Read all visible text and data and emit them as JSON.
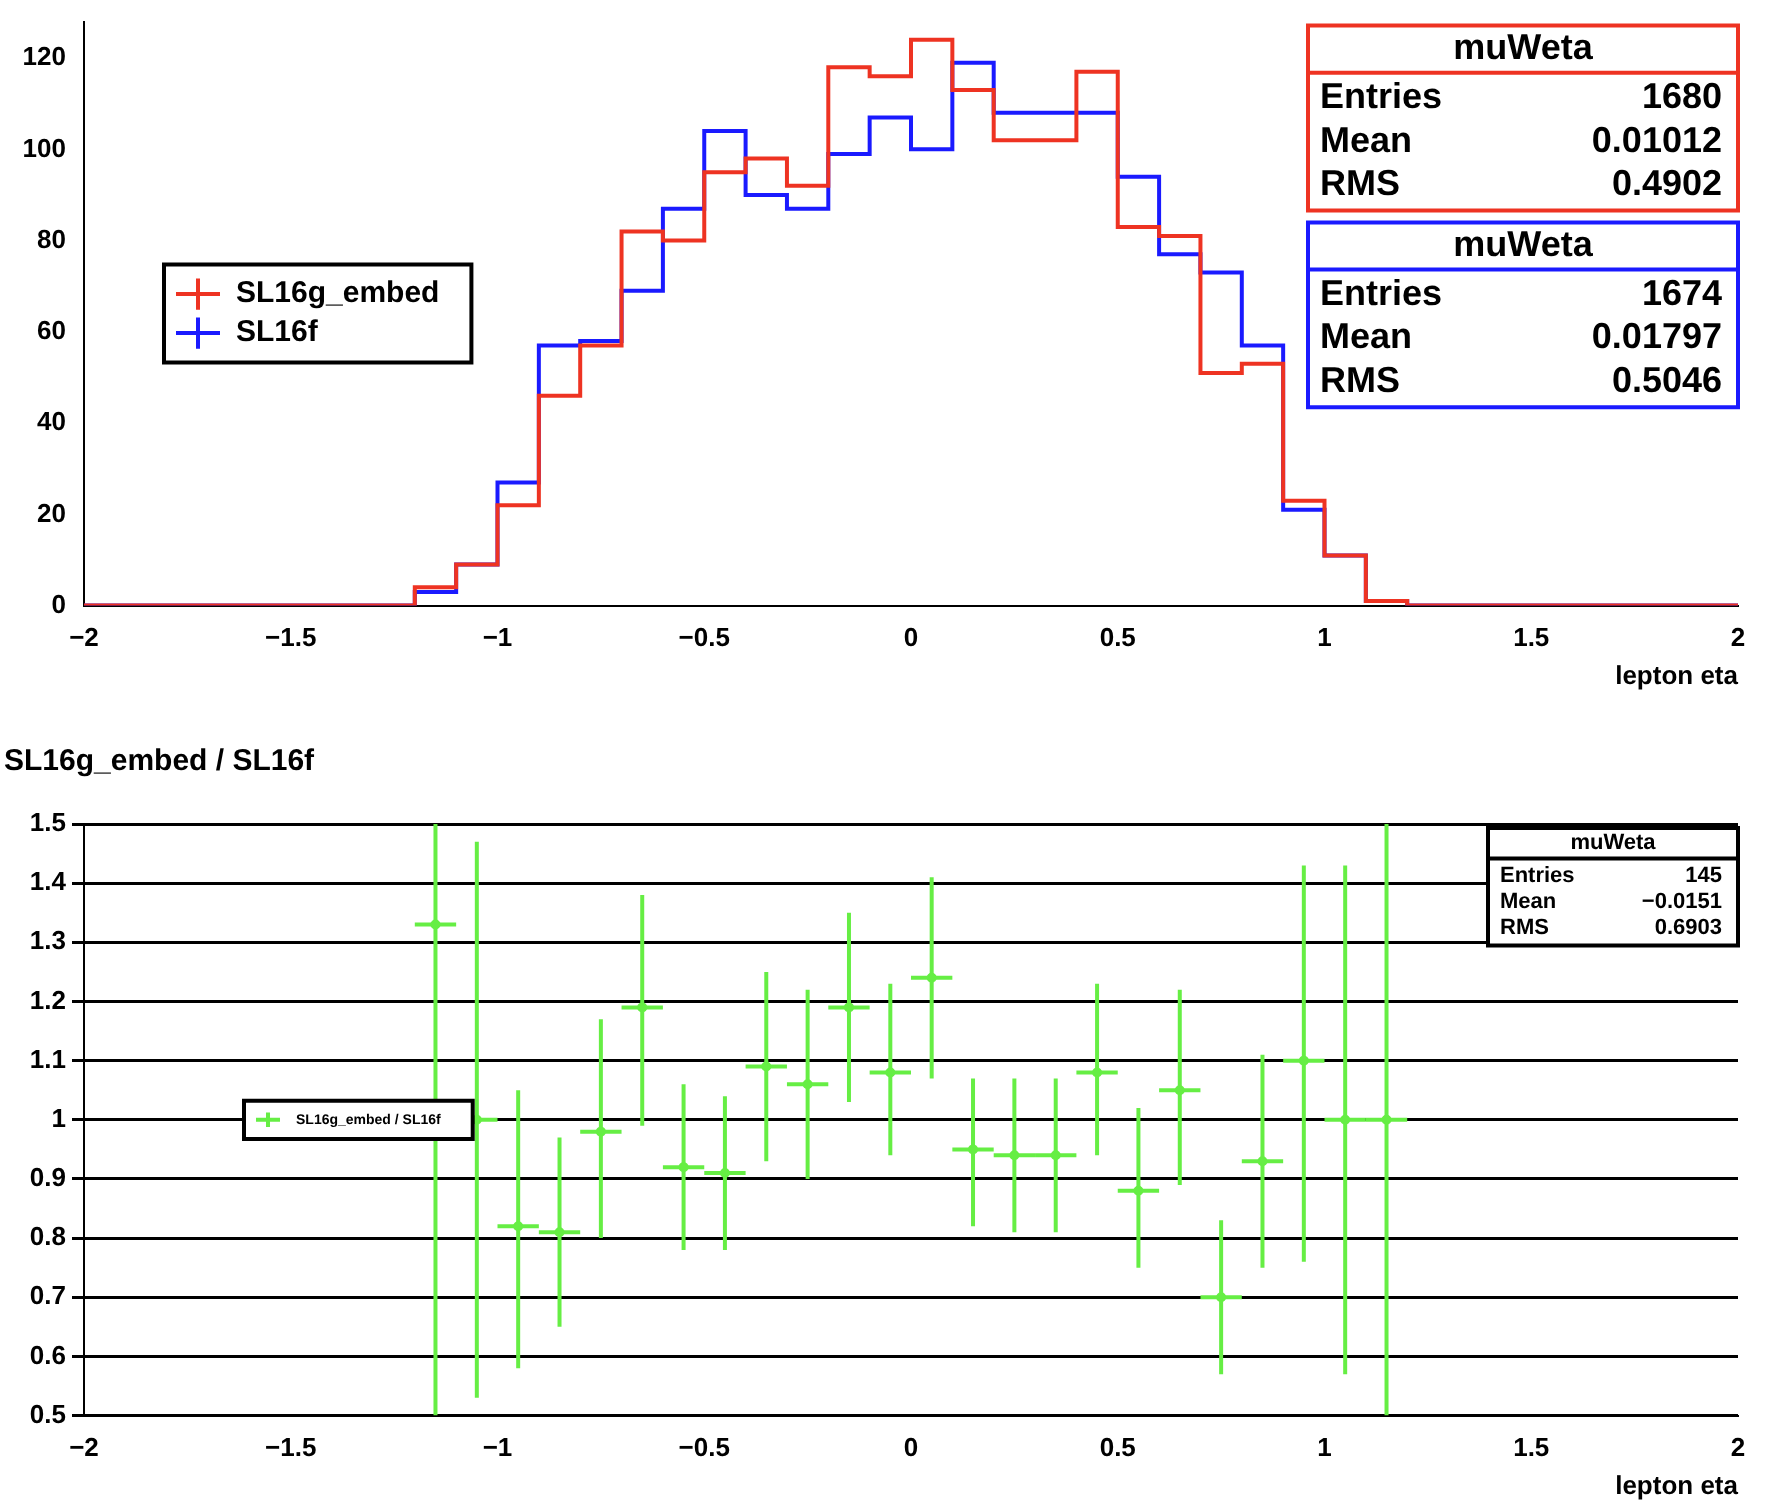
{
  "chart_data": [
    {
      "type": "histogram",
      "xlabel": "lepton eta",
      "bins": [
        -2,
        -1.9,
        -1.8,
        -1.7,
        -1.6,
        -1.5,
        -1.4,
        -1.3,
        -1.2,
        -1.1,
        -1,
        -0.9,
        -0.8,
        -0.7,
        -0.6,
        -0.5,
        -0.4,
        -0.3,
        -0.2,
        -0.1,
        0,
        0.1,
        0.2,
        0.3,
        0.4,
        0.5,
        0.6,
        0.7,
        0.8,
        0.9,
        1,
        1.1,
        1.2,
        1.3,
        1.4,
        1.5,
        1.6,
        1.7,
        1.8,
        1.9,
        2
      ],
      "series": [
        {
          "name": "SL16g_embed",
          "color": "#ee3322",
          "values": [
            0,
            0,
            0,
            0,
            0,
            0,
            0,
            0,
            4,
            9,
            22,
            46,
            57,
            82,
            80,
            95,
            98,
            92,
            118,
            116,
            124,
            113,
            102,
            102,
            117,
            83,
            81,
            51,
            53,
            23,
            11,
            1,
            0,
            0,
            0,
            0,
            0,
            0,
            0,
            0
          ]
        },
        {
          "name": "SL16f",
          "color": "#1a1aff",
          "values": [
            0,
            0,
            0,
            0,
            0,
            0,
            0,
            0,
            3,
            9,
            27,
            57,
            58,
            69,
            87,
            104,
            90,
            87,
            99,
            107,
            100,
            119,
            108,
            108,
            108,
            94,
            77,
            73,
            57,
            21,
            11,
            1,
            0,
            0,
            0,
            0,
            0,
            0,
            0,
            0
          ]
        }
      ],
      "xlim": [
        -2,
        2
      ],
      "xticks": [
        {
          "value": -2,
          "label": "−2"
        },
        {
          "value": -1.5,
          "label": "−1.5"
        },
        {
          "value": -1,
          "label": "−1"
        },
        {
          "value": -0.5,
          "label": "−0.5"
        },
        0,
        0.5,
        1,
        1.5,
        2
      ],
      "ylim": [
        0,
        128
      ],
      "yticks": [
        0,
        20,
        40,
        60,
        80,
        100,
        120
      ],
      "legend": "center left",
      "annotations": [
        "muWeta",
        "Entries",
        "1680",
        "Mean",
        "0.01012",
        "RMS",
        "0.4902",
        "muWeta",
        "Entries",
        "1674",
        "Mean",
        "0.01797",
        "RMS",
        "0.5046"
      ]
    },
    {
      "type": "scatter",
      "title": "SL16g_embed / SL16f",
      "xlabel": "lepton eta",
      "x": [
        -1.15,
        -1.05,
        -0.95,
        -0.85,
        -0.75,
        -0.65,
        -0.55,
        -0.45,
        -0.35,
        -0.25,
        -0.15,
        -0.05,
        0.05,
        0.15,
        0.25,
        0.35,
        0.45,
        0.55,
        0.65,
        0.75,
        0.85,
        0.95,
        1.05,
        1.15
      ],
      "series": [
        {
          "name": "SL16g_embed / SL16f",
          "color": "#66ee44",
          "values": [
            1.33,
            1.0,
            0.82,
            0.81,
            0.98,
            1.19,
            0.92,
            0.91,
            1.09,
            1.06,
            1.19,
            1.08,
            1.24,
            0.95,
            0.94,
            0.94,
            1.08,
            0.88,
            1.05,
            0.7,
            0.93,
            1.1,
            1.0,
            1.0
          ],
          "errors": [
            [
              0.5,
              1.5
            ],
            [
              0.53,
              1.47
            ],
            [
              0.58,
              1.05
            ],
            [
              0.65,
              0.97
            ],
            [
              0.8,
              1.17
            ],
            [
              0.99,
              1.38
            ],
            [
              0.78,
              1.06
            ],
            [
              0.78,
              1.04
            ],
            [
              0.93,
              1.25
            ],
            [
              0.9,
              1.22
            ],
            [
              1.03,
              1.35
            ],
            [
              0.94,
              1.23
            ],
            [
              1.07,
              1.41
            ],
            [
              0.82,
              1.07
            ],
            [
              0.81,
              1.07
            ],
            [
              0.81,
              1.07
            ],
            [
              0.94,
              1.23
            ],
            [
              0.75,
              1.02
            ],
            [
              0.89,
              1.22
            ],
            [
              0.57,
              0.83
            ],
            [
              0.75,
              1.11
            ],
            [
              0.76,
              1.43
            ],
            [
              0.57,
              1.43
            ],
            [
              0.5,
              1.5
            ]
          ],
          "xerrors": [
            0.05,
            0.05,
            0.05,
            0.05,
            0.05,
            0.05,
            0.05,
            0.05,
            0.05,
            0.05,
            0.05,
            0.05,
            0.05,
            0.05,
            0.05,
            0.05,
            0.05,
            0.05,
            0.05,
            0.05,
            0.05,
            0.05,
            0.05,
            0.05
          ]
        }
      ],
      "xlim": [
        -2,
        2
      ],
      "xticks": [
        {
          "value": -2,
          "label": "−2"
        },
        {
          "value": -1.5,
          "label": "−1.5"
        },
        {
          "value": -1,
          "label": "−1"
        },
        {
          "value": -0.5,
          "label": "−0.5"
        },
        0,
        0.5,
        1,
        1.5,
        2
      ],
      "ylim": [
        0.5,
        1.5
      ],
      "yticks": [
        0.5,
        0.6,
        0.7,
        0.8,
        0.9,
        1,
        1.1,
        1.2,
        1.3,
        1.4,
        1.5
      ],
      "grid": "y",
      "legend": "center left",
      "marker": "circle",
      "annotations": [
        "muWeta",
        "Entries",
        "145",
        "Mean",
        "−0.0151",
        "RMS",
        "0.6903"
      ]
    }
  ]
}
